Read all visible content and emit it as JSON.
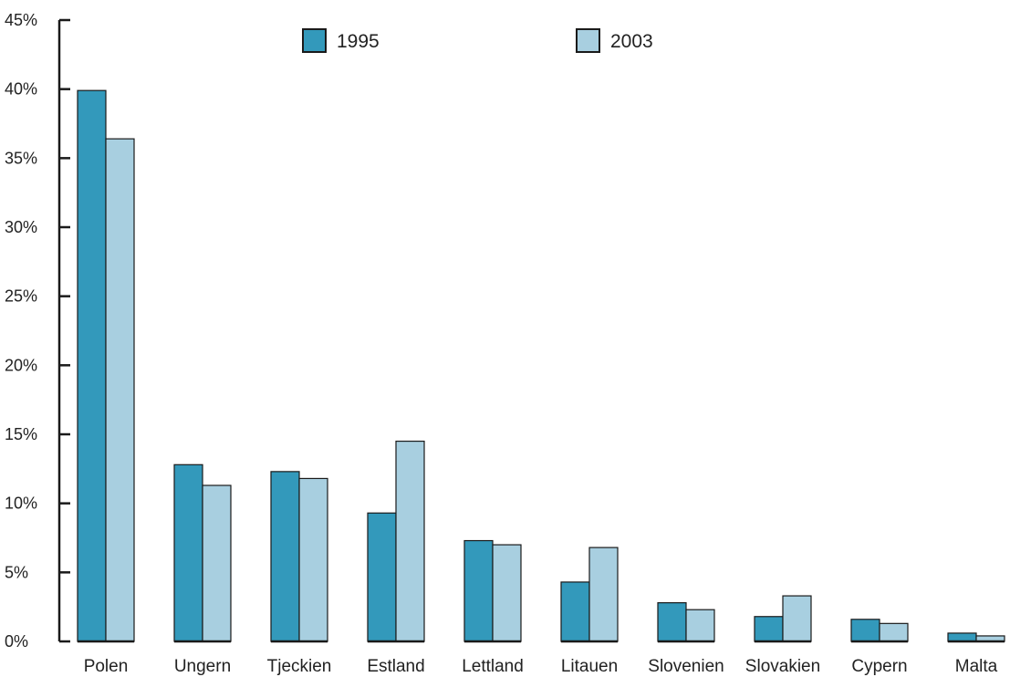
{
  "chart_data": {
    "type": "bar",
    "title": "",
    "xlabel": "",
    "ylabel": "",
    "ylim": [
      0,
      45
    ],
    "yticks": [
      0,
      5,
      10,
      15,
      20,
      25,
      30,
      35,
      40,
      45
    ],
    "ytick_labels": [
      "0%",
      "5%",
      "10%",
      "15%",
      "20%",
      "25%",
      "30%",
      "35%",
      "40%",
      "45%"
    ],
    "categories": [
      "Polen",
      "Ungern",
      "Tjeckien",
      "Estland",
      "Lettland",
      "Litauen",
      "Slovenien",
      "Slovakien",
      "Cypern",
      "Malta"
    ],
    "series": [
      {
        "name": "1995",
        "color": "#3399bb",
        "values": [
          39.9,
          12.8,
          12.3,
          9.3,
          7.3,
          4.3,
          2.8,
          1.8,
          1.6,
          0.6
        ]
      },
      {
        "name": "2003",
        "color": "#a8cfe0",
        "values": [
          36.4,
          11.3,
          11.8,
          14.5,
          7.0,
          6.8,
          2.3,
          3.3,
          1.3,
          0.4
        ]
      }
    ],
    "grid": false,
    "legend": "top"
  }
}
